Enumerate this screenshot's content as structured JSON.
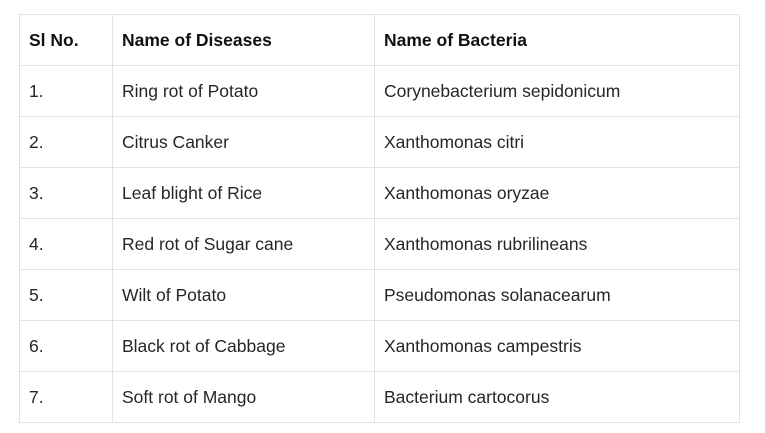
{
  "table": {
    "headers": [
      "Sl No.",
      "Name of Diseases",
      "Name of Bacteria"
    ],
    "rows": [
      [
        "1.",
        "Ring rot of Potato",
        "Corynebacterium sepidonicum"
      ],
      [
        "2.",
        "Citrus Canker",
        "Xanthomonas citri"
      ],
      [
        "3.",
        "Leaf blight of Rice",
        "Xanthomonas oryzae"
      ],
      [
        "4.",
        "Red rot of Sugar cane",
        "Xanthomonas rubrilineans"
      ],
      [
        "5.",
        "Wilt of Potato",
        "Pseudomonas solanacearum"
      ],
      [
        "6.",
        "Black rot of Cabbage",
        "Xanthomonas campestris"
      ],
      [
        "7.",
        "Soft rot of Mango",
        "Bacterium cartocorus"
      ]
    ]
  }
}
